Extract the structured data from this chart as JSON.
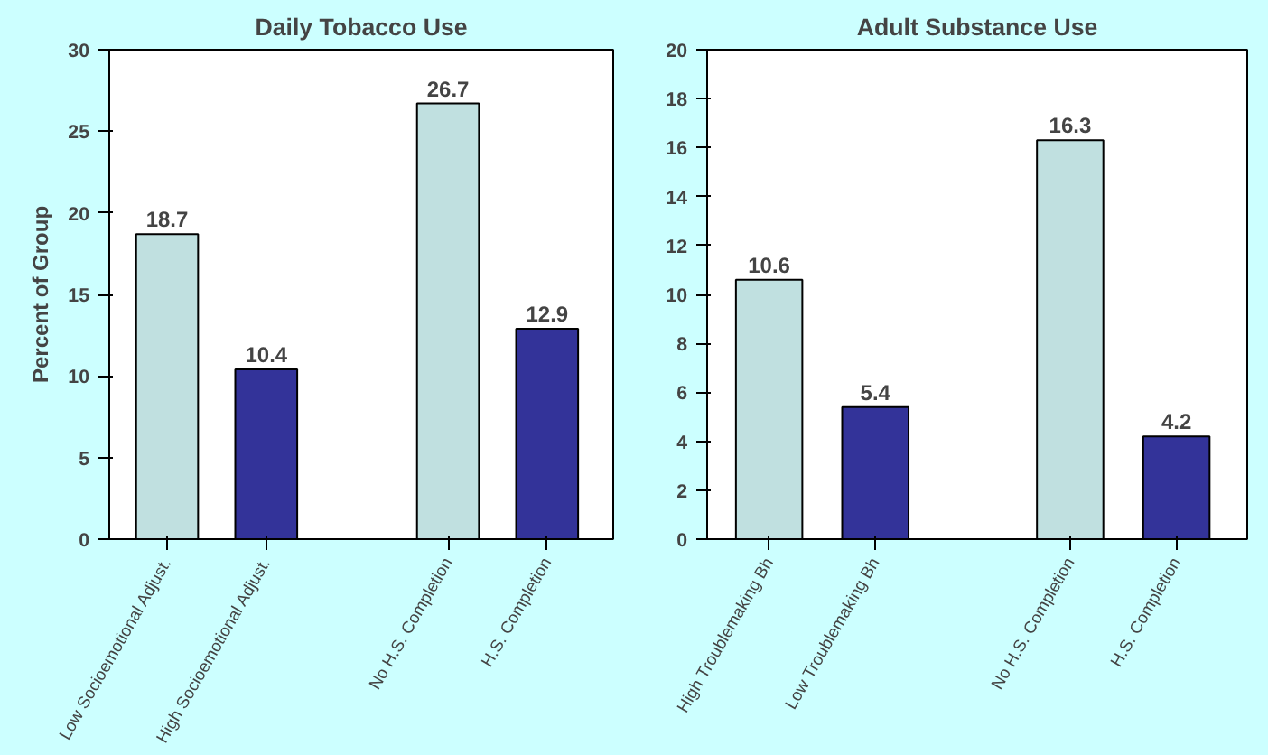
{
  "chart_data": [
    {
      "type": "bar",
      "title": "Daily Tobacco Use",
      "ylabel": "Percent of Group",
      "categories": [
        "Low Socioemotional Adjust.",
        "High Socioemotional Adjust.",
        "No H.S. Completion",
        "H.S. Completion"
      ],
      "values": [
        18.7,
        10.4,
        26.7,
        12.9
      ],
      "colors": [
        "#c0e0e0",
        "#333399",
        "#c0e0e0",
        "#333399"
      ],
      "ylim": [
        0,
        30
      ],
      "yticks": [
        0,
        5,
        10,
        15,
        20,
        25,
        30
      ],
      "data_labels": true,
      "grid": false
    },
    {
      "type": "bar",
      "title": "Adult Substance Use",
      "categories": [
        "High Troublemaking Bh",
        "Low Troublemaking Bh",
        "No H.S. Completion",
        "H.S. Completion"
      ],
      "values": [
        10.6,
        5.4,
        16.3,
        4.2
      ],
      "colors": [
        "#c0e0e0",
        "#333399",
        "#c0e0e0",
        "#333399"
      ],
      "ylim": [
        0,
        20
      ],
      "yticks": [
        0,
        2,
        4,
        6,
        8,
        10,
        12,
        14,
        16,
        18,
        20
      ],
      "data_labels": true,
      "grid": false
    }
  ]
}
